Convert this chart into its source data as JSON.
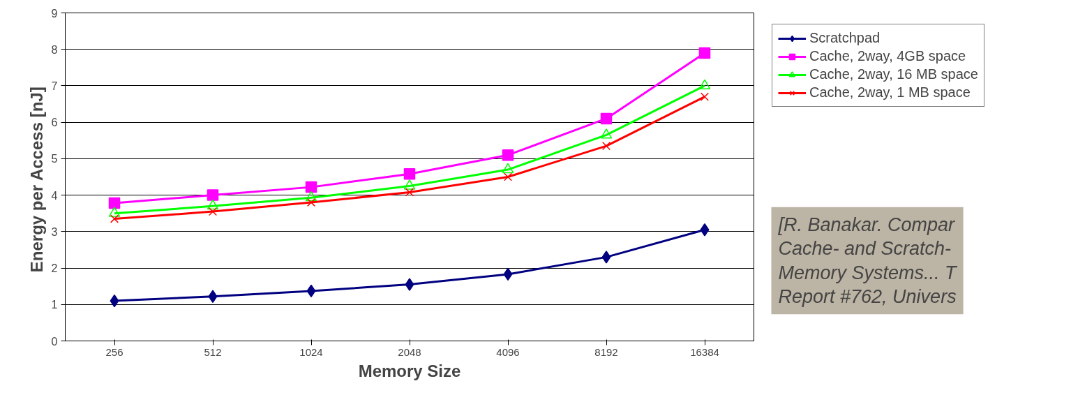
{
  "chart_data": {
    "type": "line",
    "xlabel": "Memory Size",
    "ylabel": "Energy per Access  [nJ]",
    "categories": [
      "256",
      "512",
      "1024",
      "2048",
      "4096",
      "8192",
      "16384"
    ],
    "series": [
      {
        "name": "Scratchpad",
        "color": "#000080",
        "marker": "diamond",
        "values": [
          1.1,
          1.22,
          1.37,
          1.55,
          1.83,
          2.3,
          3.05
        ]
      },
      {
        "name": "Cache, 2way, 4GB space",
        "color": "#ff00ff",
        "marker": "square",
        "values": [
          3.78,
          4.0,
          4.22,
          4.58,
          5.1,
          6.1,
          7.9
        ]
      },
      {
        "name": "Cache, 2way, 16 MB space",
        "color": "#00ff00",
        "marker": "triangle",
        "values": [
          3.5,
          3.7,
          3.93,
          4.25,
          4.7,
          5.65,
          7.0
        ]
      },
      {
        "name": "Cache, 2way, 1 MB space",
        "color": "#ff0000",
        "marker": "cross",
        "values": [
          3.35,
          3.55,
          3.8,
          4.08,
          4.5,
          5.35,
          6.7
        ]
      }
    ],
    "ylim": [
      0,
      9
    ],
    "yticks": [
      0,
      1,
      2,
      3,
      4,
      5,
      6,
      7,
      8,
      9
    ],
    "grid": "y",
    "legend": "top right",
    "annotations": [
      "[R. Banakar. Compar\nCache- and Scratch-\nMemory Systems... T\nReport #762, Univers"
    ]
  }
}
